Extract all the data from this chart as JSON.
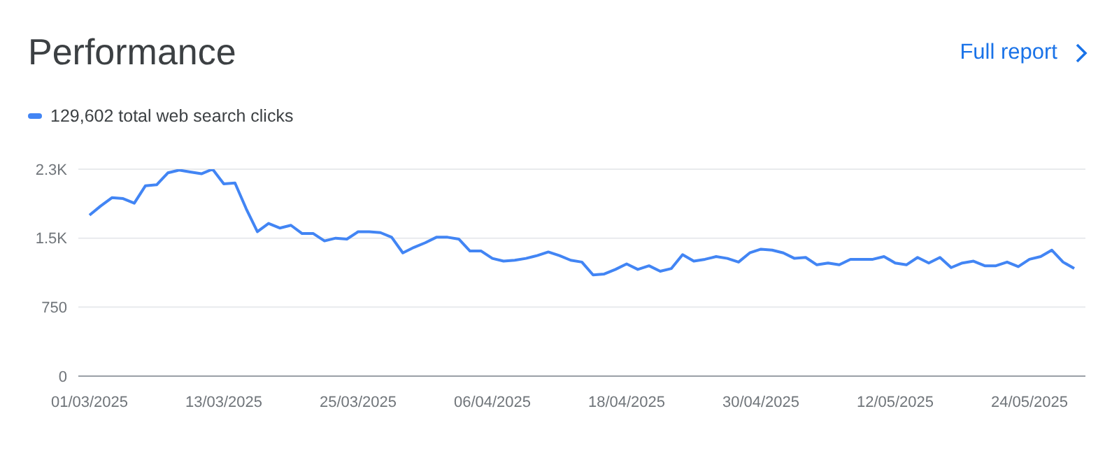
{
  "chart_data": {
    "type": "line",
    "title": "Performance",
    "annotations": [
      "Full report"
    ],
    "legend": "top left",
    "grid": "y",
    "marker": "none",
    "line_style": "solid",
    "x": [
      "2025-03-01",
      "2025-03-02",
      "2025-03-03",
      "2025-03-04",
      "2025-03-05",
      "2025-03-06",
      "2025-03-07",
      "2025-03-08",
      "2025-03-09",
      "2025-03-10",
      "2025-03-11",
      "2025-03-12",
      "2025-03-13",
      "2025-03-14",
      "2025-03-15",
      "2025-03-16",
      "2025-03-17",
      "2025-03-18",
      "2025-03-19",
      "2025-03-20",
      "2025-03-21",
      "2025-03-22",
      "2025-03-23",
      "2025-03-24",
      "2025-03-25",
      "2025-03-26",
      "2025-03-27",
      "2025-03-28",
      "2025-03-29",
      "2025-03-30",
      "2025-03-31",
      "2025-04-01",
      "2025-04-02",
      "2025-04-03",
      "2025-04-04",
      "2025-04-05",
      "2025-04-06",
      "2025-04-07",
      "2025-04-08",
      "2025-04-09",
      "2025-04-10",
      "2025-04-11",
      "2025-04-12",
      "2025-04-13",
      "2025-04-14",
      "2025-04-15",
      "2025-04-16",
      "2025-04-17",
      "2025-04-18",
      "2025-04-19",
      "2025-04-20",
      "2025-04-21",
      "2025-04-22",
      "2025-04-23",
      "2025-04-24",
      "2025-04-25",
      "2025-04-26",
      "2025-04-27",
      "2025-04-28",
      "2025-04-29",
      "2025-04-30",
      "2025-05-01",
      "2025-05-02",
      "2025-05-03",
      "2025-05-04",
      "2025-05-05",
      "2025-05-06",
      "2025-05-07",
      "2025-05-08",
      "2025-05-09",
      "2025-05-10",
      "2025-05-11",
      "2025-05-12",
      "2025-05-13",
      "2025-05-14",
      "2025-05-15",
      "2025-05-16",
      "2025-05-17",
      "2025-05-18",
      "2025-05-19",
      "2025-05-20",
      "2025-05-21",
      "2025-05-22",
      "2025-05-23",
      "2025-05-24",
      "2025-05-25",
      "2025-05-26",
      "2025-05-27",
      "2025-05-28"
    ],
    "series": [
      {
        "name": "129,602 total web search clicks",
        "color": "#4285f4",
        "values": [
          1750,
          1850,
          1940,
          1930,
          1880,
          2070,
          2080,
          2210,
          2240,
          2220,
          2200,
          2250,
          2090,
          2100,
          1820,
          1570,
          1660,
          1610,
          1640,
          1550,
          1550,
          1470,
          1500,
          1490,
          1570,
          1570,
          1560,
          1510,
          1340,
          1400,
          1450,
          1510,
          1510,
          1490,
          1360,
          1360,
          1280,
          1250,
          1260,
          1280,
          1310,
          1350,
          1310,
          1260,
          1240,
          1100,
          1110,
          1160,
          1220,
          1160,
          1200,
          1140,
          1170,
          1320,
          1250,
          1270,
          1300,
          1280,
          1240,
          1340,
          1380,
          1370,
          1340,
          1280,
          1290,
          1210,
          1230,
          1210,
          1270,
          1270,
          1270,
          1300,
          1230,
          1210,
          1290,
          1230,
          1290,
          1180,
          1230,
          1250,
          1200,
          1200,
          1240,
          1190,
          1270,
          1300,
          1370,
          1240,
          1170
        ]
      }
    ],
    "xlim": [
      "2025-02-28",
      "2025-05-29"
    ],
    "xticks": [
      {
        "value": "2025-03-01",
        "label": "01/03/2025"
      },
      {
        "value": "2025-03-13",
        "label": "13/03/2025"
      },
      {
        "value": "2025-03-25",
        "label": "25/03/2025"
      },
      {
        "value": "2025-04-06",
        "label": "06/04/2025"
      },
      {
        "value": "2025-04-18",
        "label": "18/04/2025"
      },
      {
        "value": "2025-04-30",
        "label": "30/04/2025"
      },
      {
        "value": "2025-05-12",
        "label": "12/05/2025"
      },
      {
        "value": "2025-05-24",
        "label": "24/05/2025"
      }
    ],
    "ylim": [
      0,
      2250
    ],
    "yticks": [
      0,
      750,
      {
        "value": 1500,
        "label": "1.5K"
      },
      {
        "value": 2250,
        "label": "2.3K"
      }
    ]
  }
}
